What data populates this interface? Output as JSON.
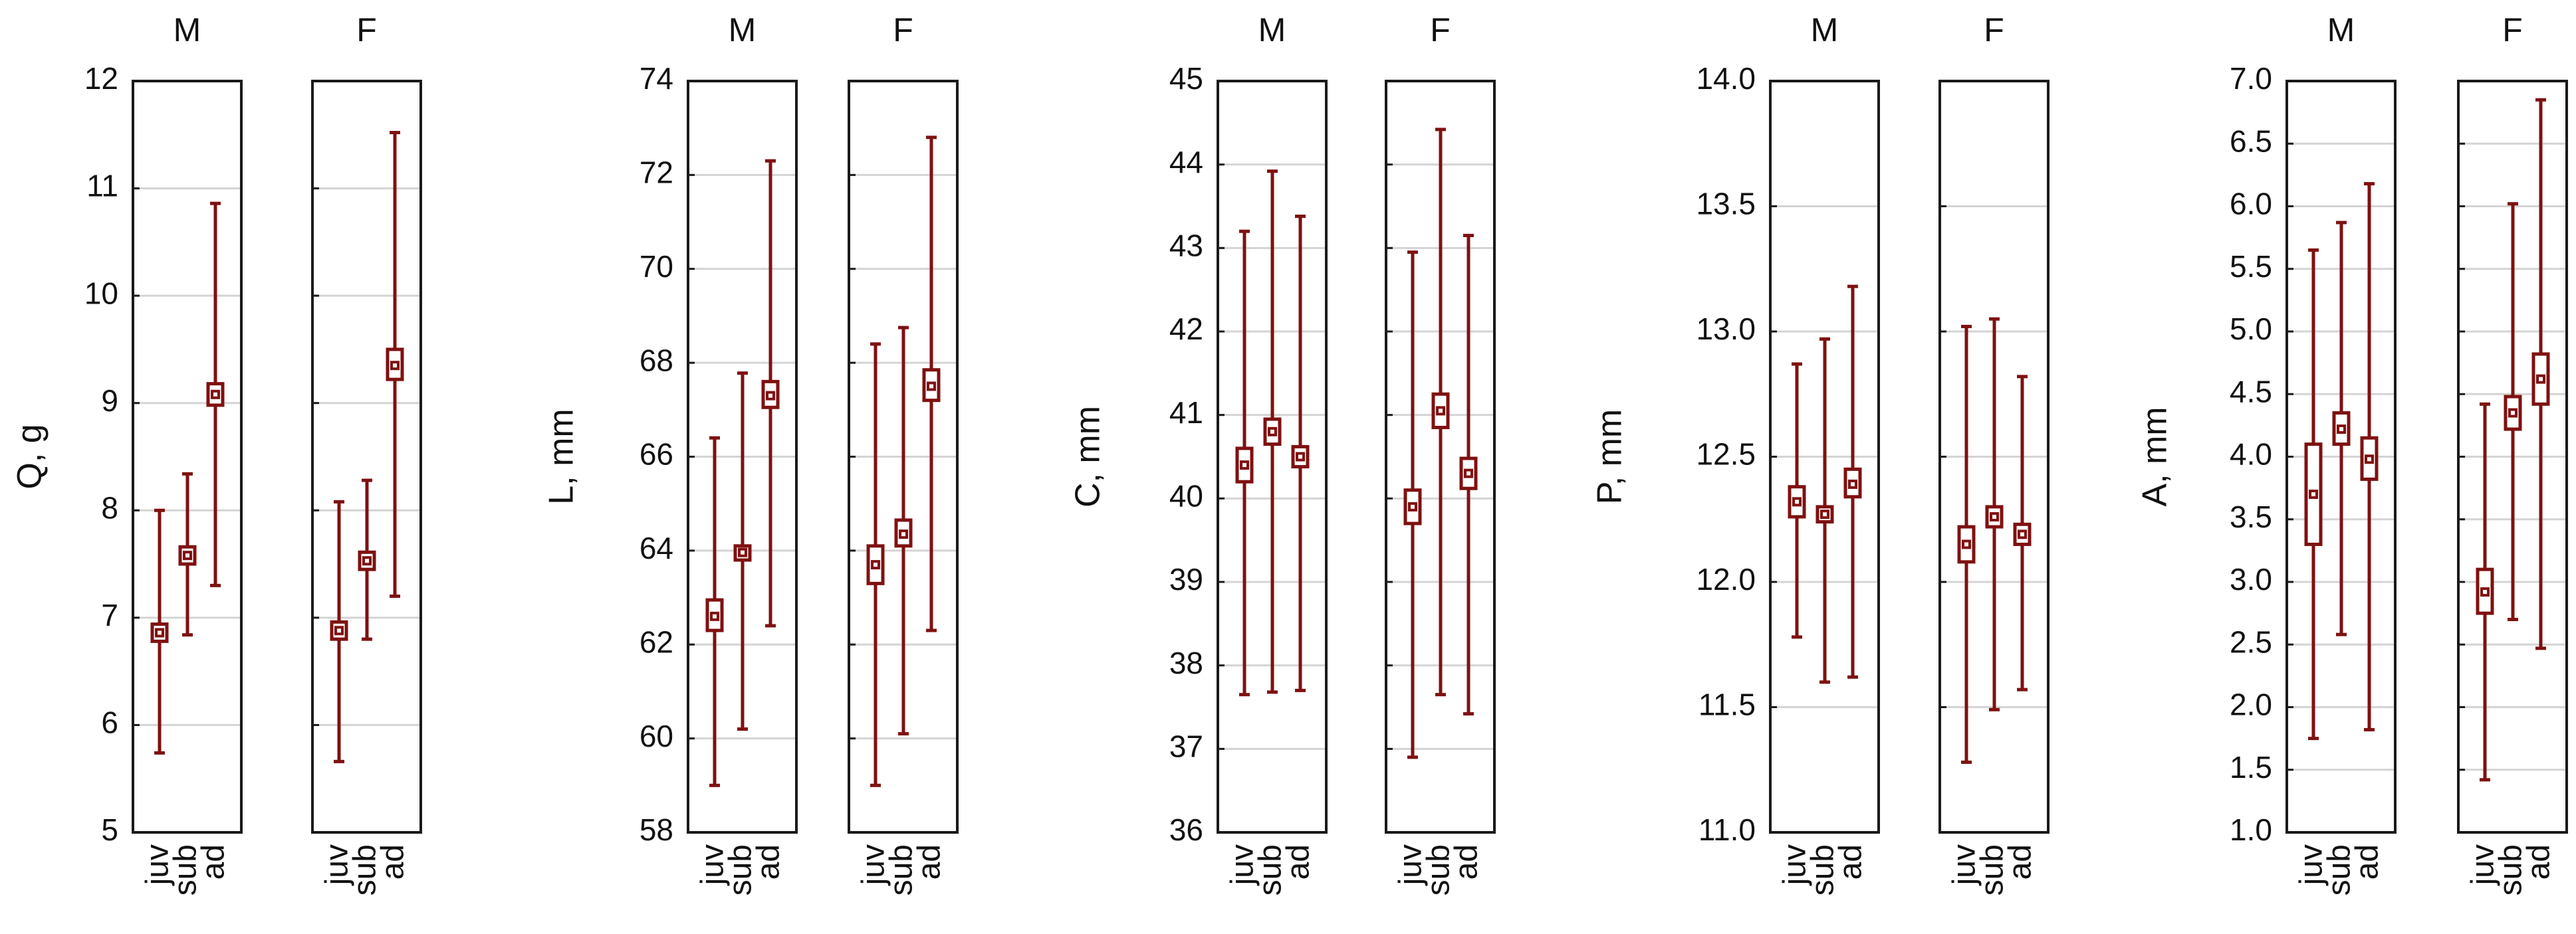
{
  "colors": {
    "marker": "#7f1111",
    "grid": "#d4d4d4",
    "frame": "#1a1a1a"
  },
  "groups": [
    "juv",
    "sub",
    "ad"
  ],
  "sexes": [
    "M",
    "F"
  ],
  "chart_data": [
    {
      "type": "box",
      "ylabel": "Q, g",
      "ylim": [
        5,
        12
      ],
      "yticks": [
        "5",
        "6",
        "7",
        "8",
        "9",
        "10",
        "11",
        "12"
      ],
      "panels": [
        {
          "sex": "M",
          "stats": [
            {
              "group": "juv",
              "mean": 6.86,
              "box": [
                6.78,
                6.94
              ],
              "whisker": [
                5.74,
                8.0
              ]
            },
            {
              "group": "sub",
              "mean": 7.58,
              "box": [
                7.5,
                7.66
              ],
              "whisker": [
                6.84,
                8.34
              ]
            },
            {
              "group": "ad",
              "mean": 9.08,
              "box": [
                8.98,
                9.18
              ],
              "whisker": [
                7.3,
                10.86
              ]
            }
          ]
        },
        {
          "sex": "F",
          "stats": [
            {
              "group": "juv",
              "mean": 6.88,
              "box": [
                6.8,
                6.96
              ],
              "whisker": [
                5.66,
                8.08
              ]
            },
            {
              "group": "sub",
              "mean": 7.53,
              "box": [
                7.45,
                7.61
              ],
              "whisker": [
                6.8,
                8.28
              ]
            },
            {
              "group": "ad",
              "mean": 9.35,
              "box": [
                9.22,
                9.5
              ],
              "whisker": [
                7.2,
                11.52
              ]
            }
          ]
        }
      ]
    },
    {
      "type": "box",
      "ylabel": "L, mm",
      "ylim": [
        58,
        74
      ],
      "yticks": [
        "58",
        "60",
        "62",
        "64",
        "66",
        "68",
        "70",
        "72",
        "74"
      ],
      "panels": [
        {
          "sex": "M",
          "stats": [
            {
              "group": "juv",
              "mean": 62.6,
              "box": [
                62.3,
                62.95
              ],
              "whisker": [
                59.0,
                66.4
              ]
            },
            {
              "group": "sub",
              "mean": 63.96,
              "box": [
                63.8,
                64.1
              ],
              "whisker": [
                60.2,
                67.78
              ]
            },
            {
              "group": "ad",
              "mean": 67.3,
              "box": [
                67.05,
                67.6
              ],
              "whisker": [
                62.4,
                72.3
              ]
            }
          ]
        },
        {
          "sex": "F",
          "stats": [
            {
              "group": "juv",
              "mean": 63.7,
              "box": [
                63.3,
                64.1
              ],
              "whisker": [
                59.0,
                68.4
              ]
            },
            {
              "group": "sub",
              "mean": 64.35,
              "box": [
                64.1,
                64.65
              ],
              "whisker": [
                60.1,
                68.75
              ]
            },
            {
              "group": "ad",
              "mean": 67.5,
              "box": [
                67.2,
                67.85
              ],
              "whisker": [
                62.3,
                72.8
              ]
            }
          ]
        }
      ]
    },
    {
      "type": "box",
      "ylabel": "C, mm",
      "ylim": [
        36,
        45
      ],
      "yticks": [
        "36",
        "37",
        "38",
        "39",
        "40",
        "41",
        "42",
        "43",
        "44",
        "45"
      ],
      "panels": [
        {
          "sex": "M",
          "stats": [
            {
              "group": "juv",
              "mean": 40.4,
              "box": [
                40.2,
                40.6
              ],
              "whisker": [
                37.65,
                43.2
              ]
            },
            {
              "group": "sub",
              "mean": 40.8,
              "box": [
                40.65,
                40.95
              ],
              "whisker": [
                37.68,
                43.92
              ]
            },
            {
              "group": "ad",
              "mean": 40.5,
              "box": [
                40.38,
                40.62
              ],
              "whisker": [
                37.7,
                43.38
              ]
            }
          ]
        },
        {
          "sex": "F",
          "stats": [
            {
              "group": "juv",
              "mean": 39.9,
              "box": [
                39.7,
                40.1
              ],
              "whisker": [
                36.9,
                42.95
              ]
            },
            {
              "group": "sub",
              "mean": 41.05,
              "box": [
                40.85,
                41.25
              ],
              "whisker": [
                37.65,
                44.42
              ]
            },
            {
              "group": "ad",
              "mean": 40.3,
              "box": [
                40.12,
                40.48
              ],
              "whisker": [
                37.42,
                43.15
              ]
            }
          ]
        }
      ]
    },
    {
      "type": "box",
      "ylabel": "P, mm",
      "ylim": [
        11.0,
        14.0
      ],
      "yticks": [
        "11.0",
        "11.5",
        "12.0",
        "12.5",
        "13.0",
        "13.5",
        "14.0"
      ],
      "panels": [
        {
          "sex": "M",
          "stats": [
            {
              "group": "juv",
              "mean": 12.32,
              "box": [
                12.26,
                12.38
              ],
              "whisker": [
                11.78,
                12.87
              ]
            },
            {
              "group": "sub",
              "mean": 12.27,
              "box": [
                12.24,
                12.3
              ],
              "whisker": [
                11.6,
                12.97
              ]
            },
            {
              "group": "ad",
              "mean": 12.39,
              "box": [
                12.34,
                12.45
              ],
              "whisker": [
                11.62,
                13.18
              ]
            }
          ]
        },
        {
          "sex": "F",
          "stats": [
            {
              "group": "juv",
              "mean": 12.15,
              "box": [
                12.08,
                12.22
              ],
              "whisker": [
                11.28,
                13.02
              ]
            },
            {
              "group": "sub",
              "mean": 12.26,
              "box": [
                12.22,
                12.3
              ],
              "whisker": [
                11.49,
                13.05
              ]
            },
            {
              "group": "ad",
              "mean": 12.19,
              "box": [
                12.15,
                12.23
              ],
              "whisker": [
                11.57,
                12.82
              ]
            }
          ]
        }
      ]
    },
    {
      "type": "box",
      "ylabel": "A, mm",
      "ylim": [
        1.0,
        7.0
      ],
      "yticks": [
        "1.0",
        "1.5",
        "2.0",
        "2.5",
        "3.0",
        "3.5",
        "4.0",
        "4.5",
        "5.0",
        "5.5",
        "6.0",
        "6.5",
        "7.0"
      ],
      "panels": [
        {
          "sex": "M",
          "stats": [
            {
              "group": "juv",
              "mean": 3.7,
              "box": [
                3.3,
                4.1
              ],
              "whisker": [
                1.75,
                5.65
              ]
            },
            {
              "group": "sub",
              "mean": 4.22,
              "box": [
                4.1,
                4.35
              ],
              "whisker": [
                2.58,
                5.87
              ]
            },
            {
              "group": "ad",
              "mean": 3.98,
              "box": [
                3.82,
                4.15
              ],
              "whisker": [
                1.82,
                6.18
              ]
            }
          ]
        },
        {
          "sex": "F",
          "stats": [
            {
              "group": "juv",
              "mean": 2.92,
              "box": [
                2.75,
                3.1
              ],
              "whisker": [
                1.42,
                4.42
              ]
            },
            {
              "group": "sub",
              "mean": 4.35,
              "box": [
                4.22,
                4.48
              ],
              "whisker": [
                2.7,
                6.02
              ]
            },
            {
              "group": "ad",
              "mean": 4.62,
              "box": [
                4.42,
                4.82
              ],
              "whisker": [
                2.47,
                6.85
              ]
            }
          ]
        }
      ]
    }
  ]
}
